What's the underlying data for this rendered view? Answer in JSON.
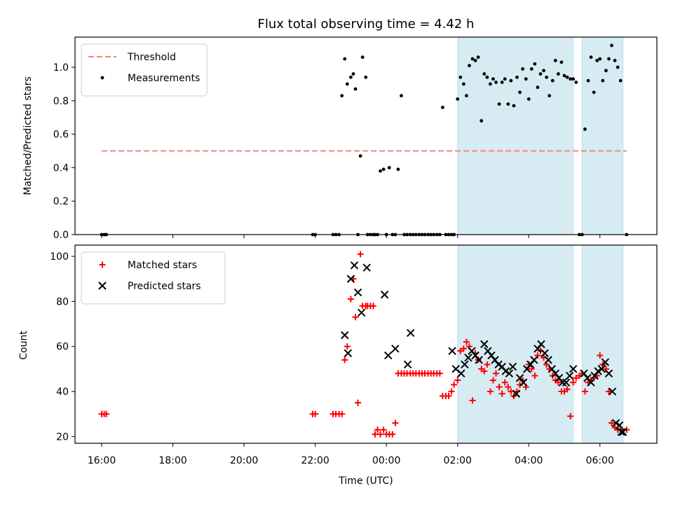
{
  "chart_data": {
    "title": "Flux total observing time = 4.42 h",
    "xlabel": "Time (UTC)",
    "x_ticks": [
      "16:00",
      "18:00",
      "20:00",
      "22:00",
      "00:00",
      "02:00",
      "04:00",
      "06:00"
    ],
    "xlim_hours": [
      15.25,
      31.6
    ],
    "shaded_intervals_hours": [
      [
        26.0,
        29.25
      ],
      [
        29.5,
        30.65
      ]
    ],
    "panels": [
      {
        "type": "scatter",
        "ylabel": "Matched/Predicted stars",
        "ylim": [
          0,
          1.18
        ],
        "y_ticks": [
          "0.0",
          "0.2",
          "0.4",
          "0.6",
          "0.8",
          "1.0"
        ],
        "legend_position": "top-left",
        "threshold": {
          "name": "Threshold",
          "value": 0.5,
          "x_range_hours": [
            16.0,
            30.75
          ],
          "color": "#ff7f7f"
        },
        "series": [
          {
            "name": "Measurements",
            "color": "#000000",
            "x_hours": [
              16.0,
              16.07,
              16.13,
              21.93,
              22.0,
              22.5,
              22.58,
              22.67,
              22.75,
              22.83,
              22.9,
              23.0,
              23.07,
              23.13,
              23.2,
              23.27,
              23.33,
              23.42,
              23.47,
              23.55,
              23.63,
              23.68,
              23.75,
              23.83,
              23.92,
              24.0,
              24.08,
              24.17,
              24.25,
              24.33,
              24.42,
              24.5,
              24.58,
              24.67,
              24.75,
              24.83,
              24.92,
              25.0,
              25.08,
              25.17,
              25.25,
              25.33,
              25.42,
              25.5,
              25.58,
              25.67,
              25.75,
              25.83,
              25.9,
              26.0,
              26.08,
              26.17,
              26.25,
              26.33,
              26.42,
              26.5,
              26.58,
              26.67,
              26.75,
              26.83,
              26.92,
              27.0,
              27.08,
              27.17,
              27.25,
              27.33,
              27.42,
              27.5,
              27.58,
              27.67,
              27.75,
              27.83,
              27.92,
              28.0,
              28.08,
              28.17,
              28.25,
              28.33,
              28.42,
              28.5,
              28.58,
              28.67,
              28.75,
              28.83,
              28.92,
              29.0,
              29.08,
              29.17,
              29.25,
              29.33,
              29.42,
              29.5,
              29.58,
              29.67,
              29.75,
              29.83,
              29.92,
              30.0,
              30.08,
              30.17,
              30.25,
              30.33,
              30.42,
              30.5,
              30.58,
              30.75
            ],
            "y": [
              0,
              0,
              0,
              0,
              0,
              0,
              0,
              0,
              0.83,
              1.05,
              0.9,
              0.94,
              0.96,
              0.87,
              0,
              0.47,
              1.06,
              0.94,
              0,
              0,
              0,
              0,
              0,
              0.38,
              0.39,
              0,
              0.4,
              0,
              0,
              0.39,
              0.83,
              0,
              0,
              0,
              0,
              0,
              0,
              0,
              0,
              0,
              0,
              0,
              0,
              0,
              0.76,
              0,
              0,
              0,
              0,
              0.81,
              0.94,
              0.9,
              0.83,
              1.01,
              1.05,
              1.04,
              1.06,
              0.68,
              0.96,
              0.94,
              0.9,
              0.93,
              0.91,
              0.78,
              0.91,
              0.93,
              0.78,
              0.92,
              0.77,
              0.94,
              0.85,
              0.99,
              0.93,
              0.81,
              0.99,
              1.02,
              0.88,
              0.96,
              0.98,
              0.94,
              0.83,
              0.92,
              1.04,
              0.96,
              1.03,
              0.95,
              0.94,
              0.93,
              0.93,
              0.91,
              0,
              0,
              0.63,
              0.92,
              1.06,
              0.85,
              1.04,
              1.05,
              0.92,
              0.98,
              1.05,
              1.13,
              1.04,
              1.0,
              0.92,
              0.0
            ]
          }
        ]
      },
      {
        "type": "scatter",
        "ylabel": "Count",
        "ylim": [
          17,
          105
        ],
        "y_ticks": [
          "20",
          "40",
          "60",
          "80",
          "100"
        ],
        "legend_position": "top-left",
        "series": [
          {
            "name": "Matched stars",
            "color": "#ff0000",
            "x_hours": [
              16.0,
              16.07,
              16.13,
              21.93,
              22.0,
              22.5,
              22.58,
              22.67,
              22.75,
              22.83,
              22.9,
              23.0,
              23.07,
              23.13,
              23.2,
              23.27,
              23.33,
              23.42,
              23.47,
              23.55,
              23.63,
              23.68,
              23.75,
              23.83,
              23.92,
              24.0,
              24.08,
              24.17,
              24.25,
              24.33,
              24.42,
              24.5,
              24.58,
              24.67,
              24.75,
              24.83,
              24.92,
              25.0,
              25.08,
              25.17,
              25.25,
              25.33,
              25.42,
              25.5,
              25.58,
              25.67,
              25.75,
              25.83,
              25.9,
              26.0,
              26.08,
              26.17,
              26.25,
              26.33,
              26.42,
              26.5,
              26.58,
              26.67,
              26.75,
              26.83,
              26.92,
              27.0,
              27.08,
              27.17,
              27.25,
              27.33,
              27.42,
              27.5,
              27.58,
              27.67,
              27.75,
              27.83,
              27.92,
              28.0,
              28.08,
              28.17,
              28.25,
              28.33,
              28.42,
              28.5,
              28.58,
              28.67,
              28.75,
              28.83,
              28.92,
              29.0,
              29.08,
              29.17,
              29.25,
              29.33,
              29.42,
              29.5,
              29.58,
              29.67,
              29.75,
              29.83,
              29.92,
              30.0,
              30.08,
              30.17,
              30.25,
              30.33,
              30.42,
              30.5,
              30.58,
              30.75
            ],
            "y": [
              30,
              30,
              30,
              30,
              30,
              30,
              30,
              30,
              30,
              54,
              60,
              81,
              90,
              73,
              35,
              101,
              78,
              78,
              78,
              78,
              78,
              21,
              23,
              21,
              23,
              21,
              21,
              21,
              26,
              48,
              48,
              48,
              48,
              48,
              48,
              48,
              48,
              48,
              48,
              48,
              48,
              48,
              48,
              48,
              38,
              38,
              38,
              40,
              43,
              45,
              58,
              59,
              62,
              60,
              36,
              57,
              54,
              50,
              49,
              52,
              40,
              45,
              48,
              42,
              39,
              44,
              42,
              40,
              38,
              40,
              43,
              45,
              42,
              52,
              50,
              47,
              56,
              58,
              55,
              52,
              50,
              47,
              45,
              44,
              40,
              40,
              41,
              29,
              44,
              46,
              47,
              48,
              40,
              44,
              45,
              46,
              47,
              56,
              52,
              50,
              40,
              26,
              24,
              23,
              23,
              23
            ]
          },
          {
            "name": "Predicted stars",
            "color": "#000000",
            "x_hours": [
              22.83,
              22.92,
              23.0,
              23.1,
              23.2,
              23.3,
              23.45,
              23.95,
              24.05,
              24.25,
              24.6,
              24.68,
              25.85,
              25.95,
              26.1,
              26.2,
              26.3,
              26.4,
              26.5,
              26.6,
              26.75,
              26.85,
              26.95,
              27.05,
              27.15,
              27.25,
              27.35,
              27.45,
              27.55,
              27.65,
              27.75,
              27.85,
              27.95,
              28.05,
              28.15,
              28.25,
              28.35,
              28.45,
              28.55,
              28.65,
              28.75,
              28.85,
              28.95,
              29.05,
              29.15,
              29.25,
              29.55,
              29.65,
              29.75,
              29.85,
              29.95,
              30.05,
              30.15,
              30.25,
              30.35,
              30.45,
              30.55,
              30.6,
              30.65
            ],
            "y": [
              65,
              57,
              90,
              96,
              84,
              75,
              95,
              83,
              56,
              59,
              52,
              66,
              58,
              50,
              48,
              52,
              55,
              58,
              56,
              54,
              61,
              58,
              56,
              54,
              52,
              51,
              49,
              48,
              51,
              39,
              46,
              44,
              50,
              52,
              54,
              59,
              61,
              57,
              54,
              50,
              48,
              46,
              44,
              44,
              47,
              50,
              48,
              46,
              44,
              47,
              49,
              50,
              53,
              48,
              40,
              26,
              25,
              22,
              22
            ]
          }
        ]
      }
    ]
  }
}
